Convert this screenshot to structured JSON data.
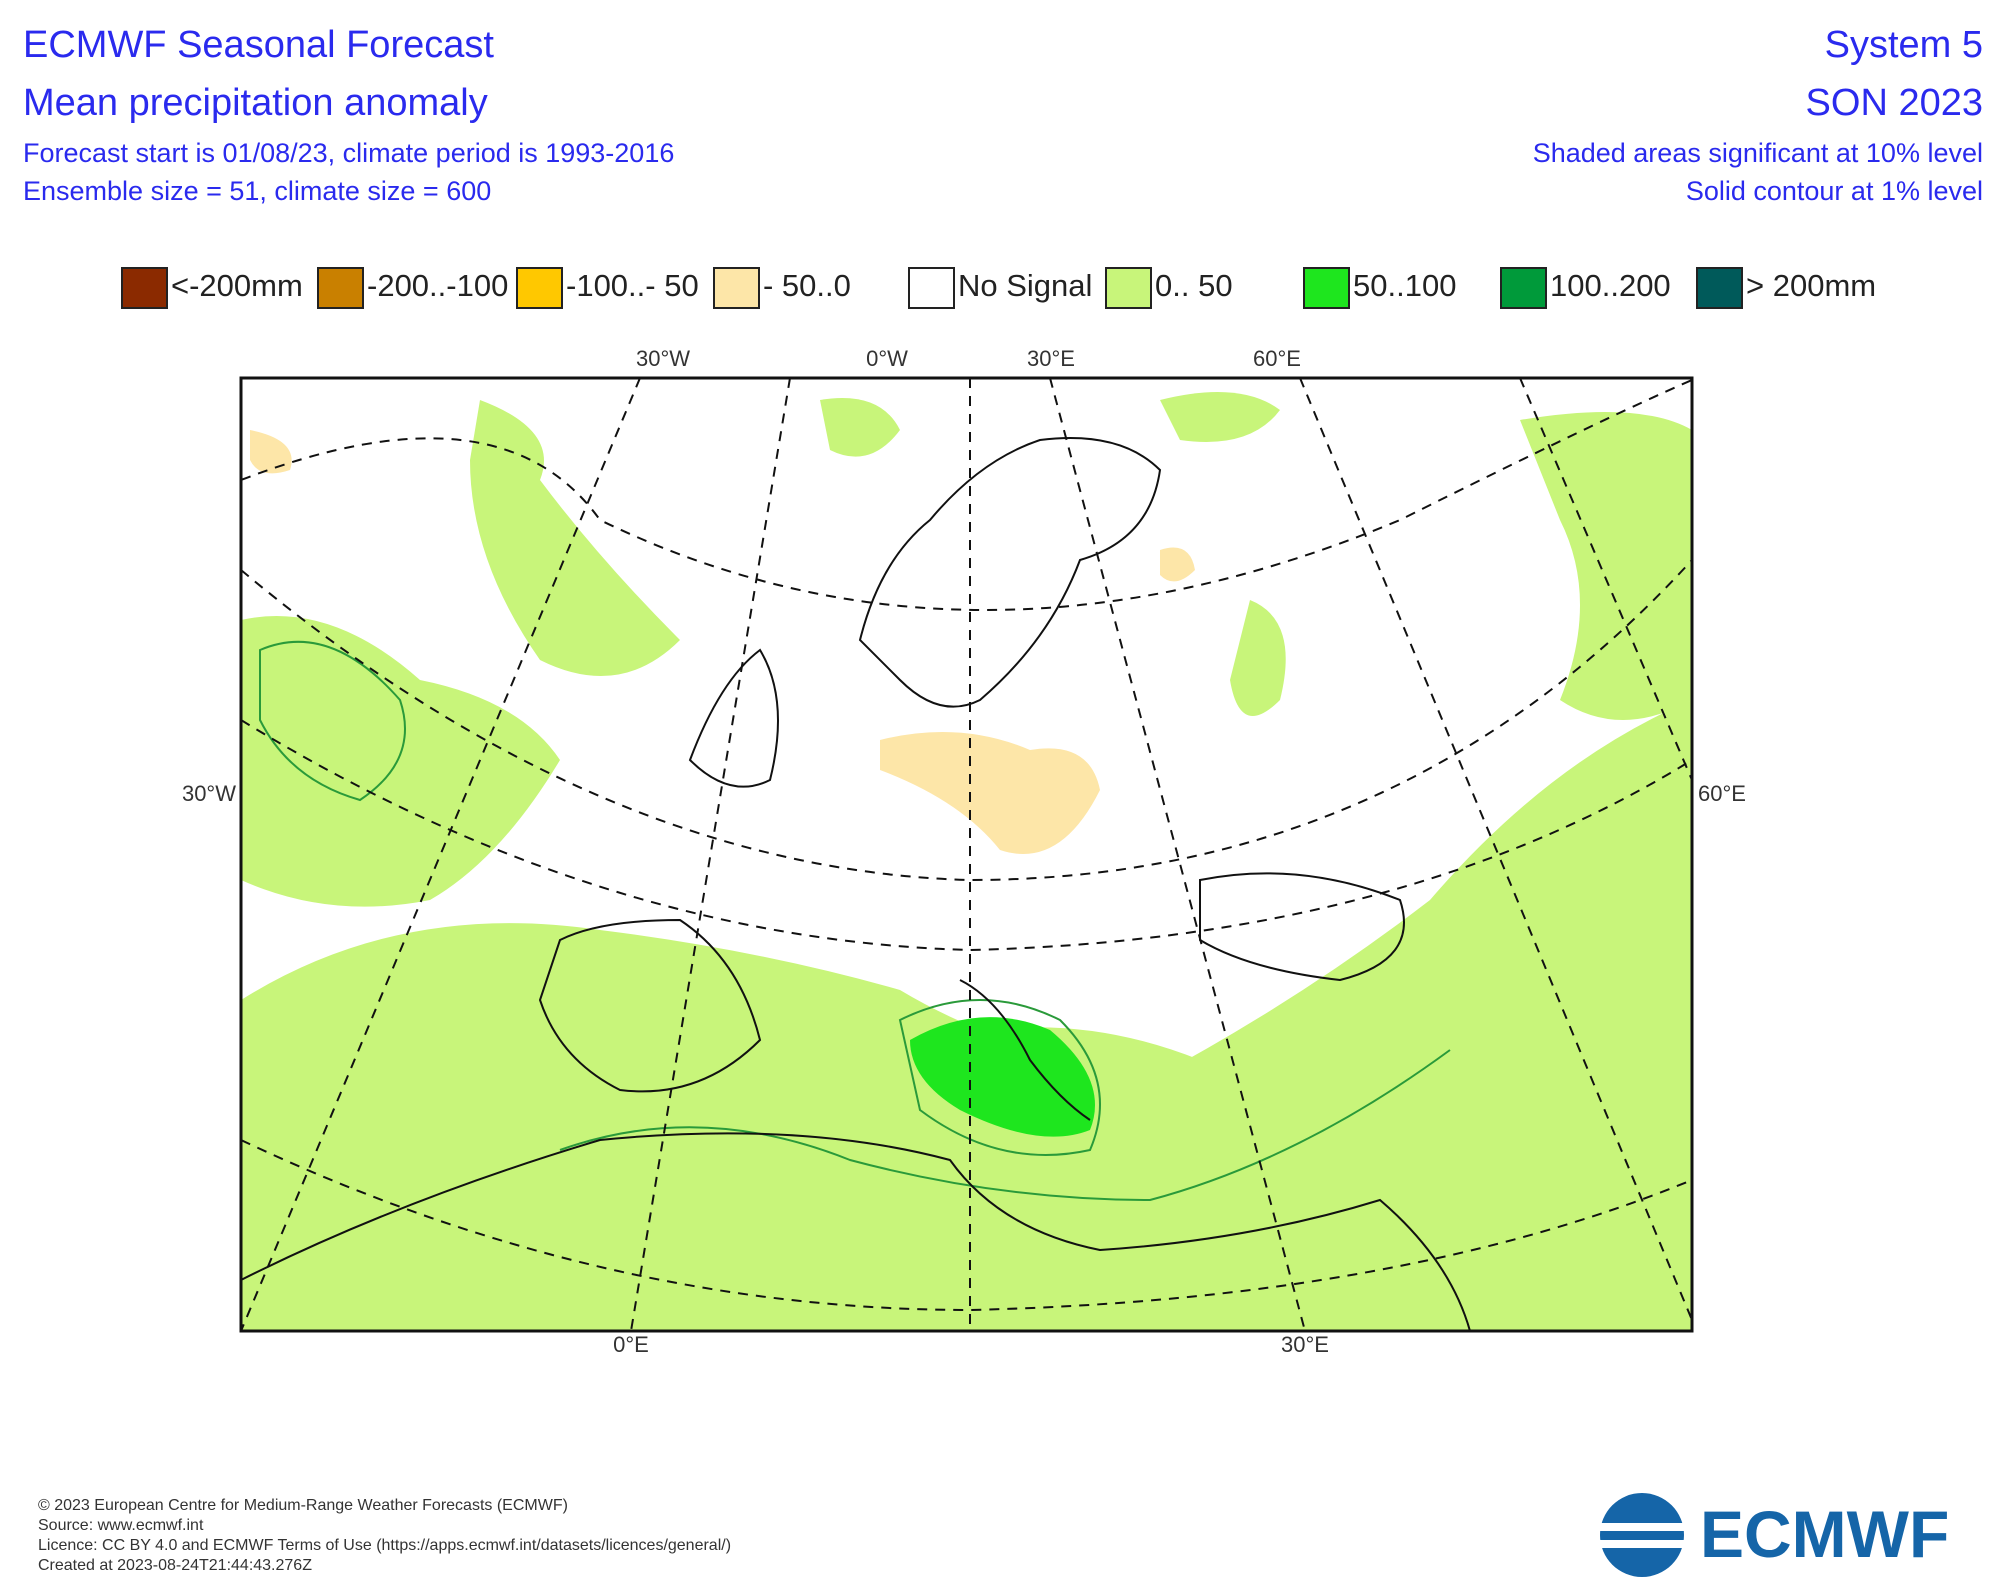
{
  "header": {
    "title": "ECMWF Seasonal Forecast",
    "subtitle": "Mean precipitation anomaly",
    "forecast_start": "Forecast start is 01/08/23, climate period is 1993-2016",
    "ensemble": "Ensemble size = 51, climate size = 600",
    "system": "System 5",
    "season": "SON 2023",
    "significance": "Shaded areas significant at 10% level",
    "contour": "Solid contour at 1% level"
  },
  "legend": {
    "items": [
      {
        "label": "<-200mm",
        "color": "#8b2a00"
      },
      {
        "label": "-200..-100",
        "color": "#c98000"
      },
      {
        "label": "-100..- 50",
        "color": "#ffc800"
      },
      {
        "label": "- 50..0",
        "color": "#fde6a8"
      },
      {
        "label": "No Signal",
        "color": "#ffffff"
      },
      {
        "label": "0.. 50",
        "color": "#c8f57a"
      },
      {
        "label": "50..100",
        "color": "#1ee61e"
      },
      {
        "label": "100..200",
        "color": "#009a3a"
      },
      {
        "label": "> 200mm",
        "color": "#005a5a"
      }
    ]
  },
  "map": {
    "top_labels": [
      "30°W",
      "0°W",
      "30°E",
      "60°E"
    ],
    "left_label": "30°W",
    "right_label": "60°E",
    "bottom_labels": [
      "0°E",
      "30°E"
    ]
  },
  "footer": {
    "lines": [
      "© 2023 European Centre for Medium-Range Weather Forecasts (ECMWF)",
      "Source: www.ecmwf.int",
      "Licence: CC BY 4.0 and ECMWF Terms of Use (https://apps.ecmwf.int/datasets/licences/general/)",
      "Created at 2023-08-24T21:44:43.276Z"
    ]
  },
  "logo": {
    "text": "ECMWF"
  }
}
